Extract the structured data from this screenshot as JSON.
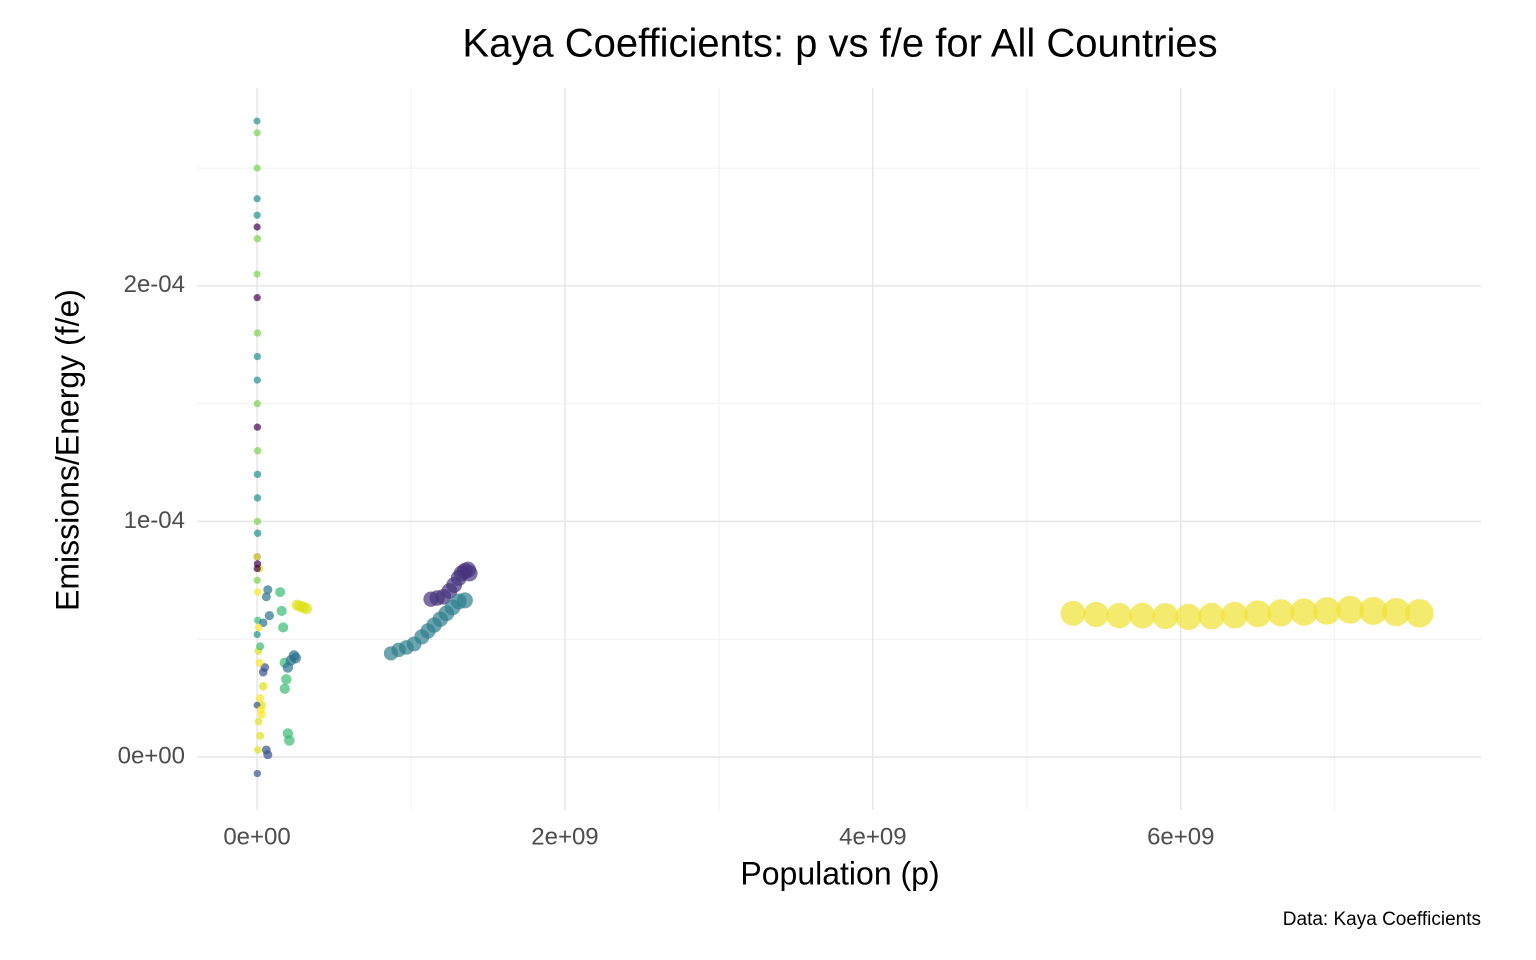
{
  "chart_data": {
    "type": "scatter",
    "title": "Kaya Coefficients: p vs f/e for All Countries",
    "x_label": "Population (p)",
    "y_label": "Emissions/Energy (f/e)",
    "caption": "Data: Kaya Coefficients",
    "xlim": [
      -390000000,
      7950000000
    ],
    "ylim": [
      -2.25e-05,
      0.000284
    ],
    "xticks": [
      {
        "value": 0,
        "label": "0e+00"
      },
      {
        "value": 2000000000,
        "label": "2e+09"
      },
      {
        "value": 4000000000,
        "label": "4e+09"
      },
      {
        "value": 6000000000,
        "label": "6e+09"
      }
    ],
    "yticks": [
      {
        "value": 0,
        "label": "0e+00"
      },
      {
        "value": 0.0001,
        "label": "1e-04"
      },
      {
        "value": 0.0002,
        "label": "2e-04"
      }
    ],
    "xminorticks": [
      1000000000,
      3000000000,
      5000000000,
      7000000000
    ],
    "yminorticks": [
      5e-05,
      0.00015,
      0.00025
    ],
    "grid": true,
    "series": [
      {
        "color": "#f0e130",
        "x": [
          5300000000,
          5450000000,
          5600000000,
          5750000000,
          5900000000,
          6050000000,
          6200000000,
          6350000000,
          6500000000,
          6650000000,
          6800000000,
          6950000000,
          7100000000,
          7250000000,
          7400000000,
          7550000000
        ],
        "values": [
          6.1e-05,
          6.05e-05,
          6e-05,
          6e-05,
          5.98e-05,
          5.95e-05,
          5.98e-05,
          6.02e-05,
          6.08e-05,
          6.12e-05,
          6.15e-05,
          6.2e-05,
          6.25e-05,
          6.2e-05,
          6.15e-05,
          6.1e-05
        ]
      },
      {
        "color": "#46337e",
        "x": [
          1130000000,
          1170000000,
          1210000000,
          1250000000,
          1280000000,
          1310000000,
          1330000000,
          1350000000,
          1370000000,
          1380000000
        ],
        "values": [
          6.7e-05,
          6.75e-05,
          6.8e-05,
          7.05e-05,
          7.3e-05,
          7.6e-05,
          7.8e-05,
          7.9e-05,
          7.95e-05,
          7.8e-05
        ]
      },
      {
        "color": "#2e7f8e",
        "x": [
          870000000,
          920000000,
          970000000,
          1020000000,
          1070000000,
          1110000000,
          1150000000,
          1190000000,
          1230000000,
          1270000000,
          1310000000,
          1350000000
        ],
        "values": [
          4.4e-05,
          4.55e-05,
          4.65e-05,
          4.8e-05,
          5.1e-05,
          5.35e-05,
          5.6e-05,
          5.85e-05,
          6.1e-05,
          6.35e-05,
          6.6e-05,
          6.65e-05
        ]
      },
      {
        "color": "#dde318",
        "x": [
          260000000,
          280000000,
          300000000,
          320000000,
          10000000,
          20000000,
          5000000,
          30000000,
          15000000,
          8000000,
          40000000
        ],
        "values": [
          6.45e-05,
          6.4e-05,
          6.35e-05,
          6.3e-05,
          1.5e-05,
          9e-06,
          3e-06,
          2.2e-05,
          8e-05,
          4.5e-05,
          3e-05
        ]
      },
      {
        "color": "#3bbb75",
        "x": [
          150000000,
          160000000,
          170000000,
          180000000,
          190000000,
          200000000,
          210000000,
          180000000,
          5000000,
          20000000
        ],
        "values": [
          7e-05,
          6.2e-05,
          5.5e-05,
          4e-05,
          3.3e-05,
          1e-05,
          7e-06,
          2.9e-05,
          5.8e-05,
          4.7e-05
        ]
      },
      {
        "color": "#2c728e",
        "x": [
          200000000,
          220000000,
          240000000,
          250000000,
          60000000,
          80000000,
          40000000,
          70000000
        ],
        "values": [
          3.8e-05,
          4.1e-05,
          4.3e-05,
          4.2e-05,
          6.8e-05,
          6e-05,
          5.7e-05,
          7.1e-05
        ]
      },
      {
        "color": "#3b528b",
        "x": [
          60000000,
          70000000,
          40000000,
          50000000,
          2000000,
          1000000,
          0
        ],
        "values": [
          3e-06,
          1e-06,
          3.6e-05,
          3.8e-05,
          -7e-06,
          8.5e-05,
          2.2e-05
        ]
      },
      {
        "color": "#7ad151",
        "x": [
          1000000,
          500000,
          2000000,
          0,
          3000000,
          1500000,
          4000000,
          2500000,
          1000000
        ],
        "values": [
          0.000265,
          0.00025,
          0.00022,
          0.000205,
          0.00018,
          0.00015,
          0.00013,
          0.0001,
          7.5e-05
        ]
      },
      {
        "color": "#21918c",
        "x": [
          0,
          500000,
          1000000,
          2000000,
          1500000,
          3000000,
          2500000,
          4000000,
          1000000
        ],
        "values": [
          0.00027,
          0.000237,
          0.00023,
          0.00017,
          0.00016,
          0.00012,
          0.00011,
          9.5e-05,
          5.2e-05
        ]
      },
      {
        "color": "#440154",
        "x": [
          500000,
          1000000,
          2000000,
          3000000,
          1000000
        ],
        "values": [
          0.000225,
          0.000195,
          0.00014,
          8.2e-05,
          8e-05
        ]
      },
      {
        "color": "#fde725",
        "x": [
          0,
          5000000,
          10000000,
          15000000,
          20000000,
          25000000,
          30000000
        ],
        "values": [
          8.5e-05,
          7e-05,
          5.5e-05,
          4e-05,
          2.5e-05,
          2e-05,
          1.8e-05
        ]
      }
    ]
  }
}
